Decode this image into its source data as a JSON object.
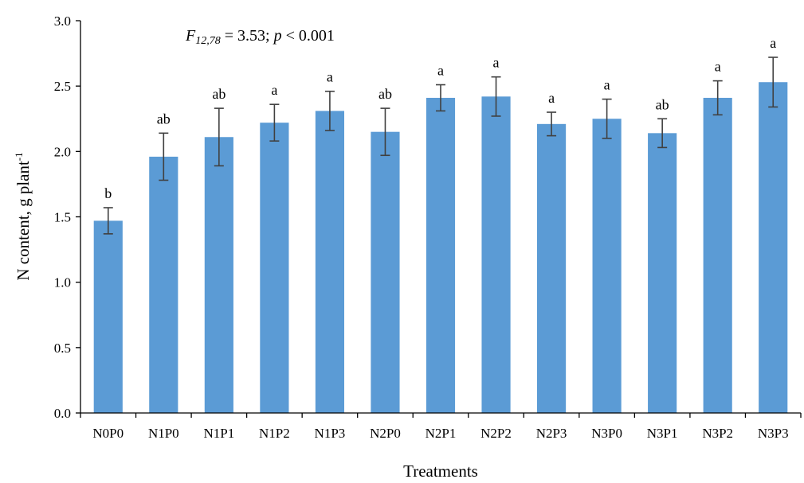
{
  "colors": {
    "bar": "#5B9BD5",
    "error_bar": "#404040",
    "axis": "#000000"
  },
  "chart_data": {
    "type": "bar",
    "title": "",
    "xlabel": "Treatments",
    "ylabel_main": "N content, g plant",
    "ylabel_sup": "-1",
    "ylim": [
      0,
      3.0
    ],
    "yticks": [
      0,
      0.5,
      1.0,
      1.5,
      2.0,
      2.5,
      3.0
    ],
    "ytick_labels": [
      "0.0",
      "0.5",
      "1.0",
      "1.5",
      "2.0",
      "2.5",
      "3.0"
    ],
    "grid": false,
    "categories": [
      "N0P0",
      "N1P0",
      "N1P1",
      "N1P2",
      "N1P3",
      "N2P0",
      "N2P1",
      "N2P2",
      "N2P3",
      "N3P0",
      "N3P1",
      "N3P2",
      "N3P3"
    ],
    "values": [
      1.47,
      1.96,
      2.11,
      2.22,
      2.31,
      2.15,
      2.41,
      2.42,
      2.21,
      2.25,
      2.14,
      2.41,
      2.53
    ],
    "errors": [
      0.1,
      0.18,
      0.22,
      0.14,
      0.15,
      0.18,
      0.1,
      0.15,
      0.09,
      0.15,
      0.11,
      0.13,
      0.19
    ],
    "significance_labels": [
      "b",
      "ab",
      "ab",
      "a",
      "a",
      "ab",
      "a",
      "a",
      "a",
      "a",
      "ab",
      "a",
      "a"
    ],
    "annotation": {
      "f_symbol": "F",
      "f_subscript": "12,78",
      "f_value": " = 3.53; ",
      "p_symbol": "p",
      "p_value": " < 0.001"
    }
  }
}
